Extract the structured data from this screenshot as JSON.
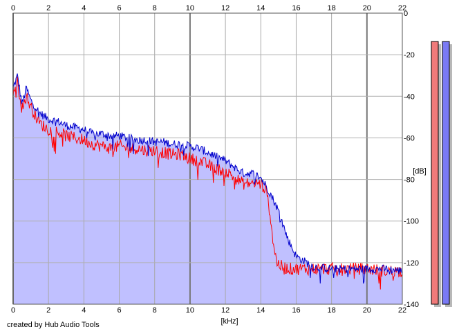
{
  "chart_data": {
    "type": "area",
    "x_unit_label": "[kHz]",
    "y_unit_label": "[dB]",
    "xlim": [
      0,
      22
    ],
    "ylim": [
      -140,
      0
    ],
    "x_ticks": [
      "0",
      "2",
      "4",
      "6",
      "8",
      "10",
      "12",
      "14",
      "16",
      "18",
      "20",
      "22"
    ],
    "y_ticks": [
      "0",
      "-20",
      "-40",
      "-60",
      "-80",
      "-100",
      "-120",
      "-140"
    ],
    "grid": true,
    "colors": {
      "red_series": "#ff0000",
      "blue_series": "#0000cc",
      "area_fill": "#c0c0ff",
      "meter_red": "#f07a7a",
      "meter_blue": "#7a7af5"
    },
    "series": [
      {
        "key": "red",
        "x": [
          0,
          0.25,
          0.5,
          0.75,
          1,
          1.5,
          2,
          2.5,
          3,
          3.5,
          4,
          4.5,
          5,
          5.5,
          6,
          6.5,
          7,
          7.5,
          8,
          8.5,
          9,
          9.5,
          10,
          10.5,
          11,
          11.5,
          12,
          12.5,
          13,
          13.5,
          14,
          14.3,
          14.5,
          14.7,
          14.9,
          15.2,
          15.6,
          16,
          17,
          18,
          19,
          20,
          21,
          22
        ],
        "y": [
          -38,
          -33,
          -46,
          -40,
          -45,
          -53,
          -56,
          -57,
          -59,
          -60,
          -61,
          -63,
          -64,
          -65,
          -64,
          -65,
          -65,
          -66,
          -66,
          -67,
          -68,
          -68,
          -70,
          -71,
          -73,
          -75,
          -76,
          -79,
          -82,
          -82,
          -82,
          -85,
          -95,
          -110,
          -120,
          -122,
          -123,
          -123,
          -123,
          -123,
          -123,
          -123,
          -124,
          -124
        ]
      },
      {
        "key": "blue",
        "x": [
          0,
          0.25,
          0.5,
          0.75,
          1,
          1.5,
          2,
          2.5,
          3,
          3.5,
          4,
          4.5,
          5,
          5.5,
          6,
          6.5,
          7,
          7.5,
          8,
          8.5,
          9,
          9.5,
          10,
          10.5,
          11,
          11.5,
          12,
          12.5,
          13,
          13.5,
          14,
          14.5,
          15,
          15.5,
          16,
          17,
          18,
          19,
          20,
          21,
          22
        ],
        "y": [
          -36,
          -30,
          -44,
          -36,
          -42,
          -48,
          -51,
          -52,
          -54,
          -55,
          -56,
          -58,
          -58,
          -59,
          -59,
          -60,
          -61,
          -61,
          -62,
          -62,
          -63,
          -63,
          -64,
          -65,
          -67,
          -69,
          -71,
          -74,
          -77,
          -77,
          -79,
          -86,
          -95,
          -108,
          -117,
          -122,
          -123,
          -123,
          -123,
          -123,
          -124
        ]
      }
    ],
    "level_meters": [
      {
        "key": "red",
        "level_db": 0
      },
      {
        "key": "blue",
        "level_db": 0
      }
    ]
  },
  "footer": {
    "credit": "created by Hub Audio Tools"
  }
}
